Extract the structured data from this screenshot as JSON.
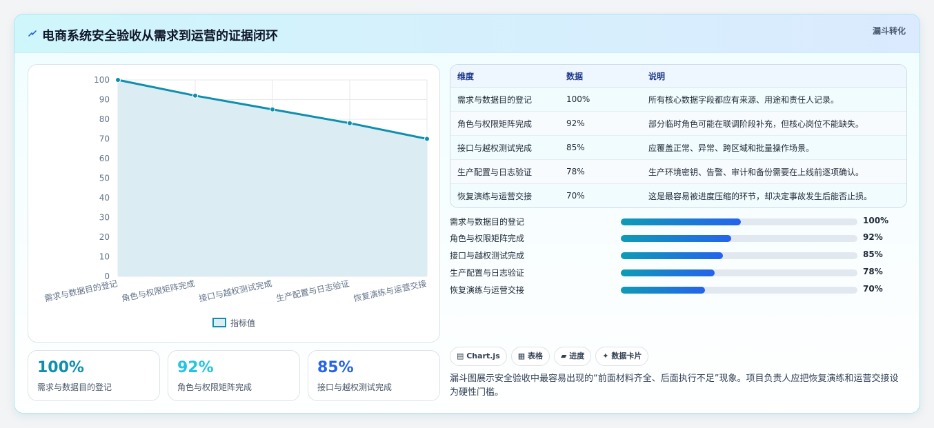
{
  "header": {
    "title": "电商系统安全验收从需求到运营的证据闭环",
    "icon": "lightning-icon",
    "badge": "漏斗转化"
  },
  "chart_data": {
    "type": "line",
    "categories": [
      "需求与数据目的登记",
      "角色与权限矩阵完成",
      "接口与越权测试完成",
      "生产配置与日志验证",
      "恢复演练与运营交接"
    ],
    "series": [
      {
        "name": "指标值",
        "values": [
          100,
          92,
          85,
          78,
          70
        ]
      }
    ],
    "yticks": [
      "0",
      "10",
      "20",
      "30",
      "40",
      "50",
      "60",
      "70",
      "80",
      "90",
      "100"
    ],
    "ylim": [
      0,
      100
    ],
    "grid": true,
    "fill": true,
    "legend": "bottom",
    "color": "#0e8fad"
  },
  "kpis": [
    {
      "value": "100%",
      "label": "需求与数据目的登记",
      "color": "#0e8fad"
    },
    {
      "value": "92%",
      "label": "角色与权限矩阵完成",
      "color": "#22c5e0"
    },
    {
      "value": "85%",
      "label": "接口与越权测试完成",
      "color": "#2563eb"
    }
  ],
  "table": {
    "headers": [
      "维度",
      "数据",
      "说明"
    ],
    "rows": [
      [
        "需求与数据目的登记",
        "100%",
        "所有核心数据字段都应有来源、用途和责任人记录。"
      ],
      [
        "角色与权限矩阵完成",
        "92%",
        "部分临时角色可能在联调阶段补充，但核心岗位不能缺失。"
      ],
      [
        "接口与越权测试完成",
        "85%",
        "应覆盖正常、异常、跨区域和批量操作场景。"
      ],
      [
        "生产配置与日志验证",
        "78%",
        "生产环境密钥、告警、审计和备份需要在上线前逐项确认。"
      ],
      [
        "恢复演练与运营交接",
        "70%",
        "这是最容易被进度压缩的环节，却决定事故发生后能否止损。"
      ]
    ]
  },
  "progress": [
    {
      "label": "需求与数据目的登记",
      "value": "100%",
      "fraction": 1.0
    },
    {
      "label": "角色与权限矩阵完成",
      "value": "92%",
      "fraction": 0.92
    },
    {
      "label": "接口与越权测试完成",
      "value": "85%",
      "fraction": 0.85
    },
    {
      "label": "生产配置与日志验证",
      "value": "78%",
      "fraction": 0.78
    },
    {
      "label": "恢复演练与运营交接",
      "value": "70%",
      "fraction": 0.7
    }
  ],
  "tags": [
    {
      "label": "Chart.js",
      "icon": "chart-icon"
    },
    {
      "label": "表格",
      "icon": "table-icon"
    },
    {
      "label": "进度",
      "icon": "progress-icon"
    },
    {
      "label": "数据卡片",
      "icon": "sparkle-icon"
    }
  ],
  "description": "漏斗图展示安全验收中最容易出现的“前面材料齐全、后面执行不足”现象。项目负责人应把恢复演练和运营交接设为硬性门槛。"
}
